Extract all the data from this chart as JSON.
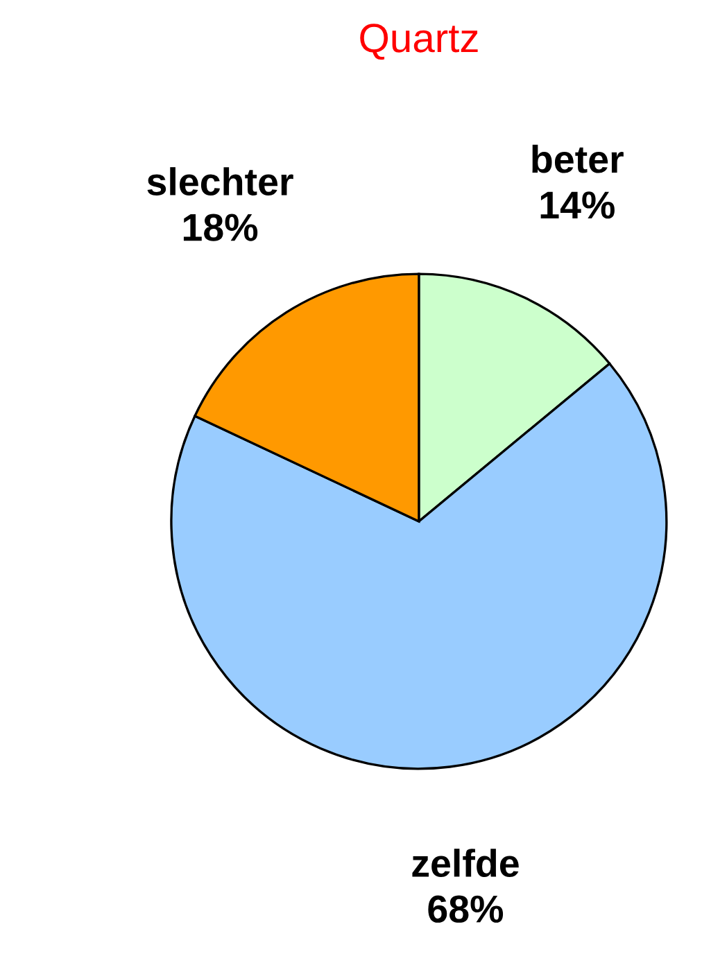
{
  "chart_data": {
    "type": "pie",
    "title": "Quartz",
    "categories": [
      "beter",
      "zelfde",
      "slechter"
    ],
    "values": [
      14,
      68,
      18
    ],
    "colors": [
      "#ccffcc",
      "#99ccff",
      "#ff9900"
    ],
    "value_labels": [
      "14%",
      "68%",
      "18%"
    ]
  }
}
